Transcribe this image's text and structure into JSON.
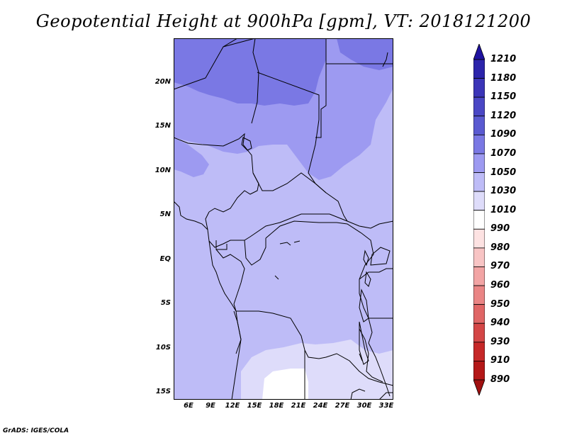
{
  "title": "Geopotential Height at 900hPa [gpm], VT: 2018121200",
  "footer": "GrADS: IGES/COLA",
  "map": {
    "lat_labels": [
      "20N",
      "15N",
      "10N",
      "5N",
      "EQ",
      "5S",
      "10S",
      "15S"
    ],
    "lon_labels": [
      "6E",
      "9E",
      "12E",
      "15E",
      "18E",
      "21E",
      "24E",
      "27E",
      "30E",
      "33E"
    ],
    "lat_range": [
      -15.8,
      24.7
    ],
    "lon_range": [
      3.5,
      33.5
    ]
  },
  "colorbar": {
    "labels": [
      "1210",
      "1180",
      "1150",
      "1120",
      "1090",
      "1070",
      "1050",
      "1030",
      "1010",
      "990",
      "980",
      "970",
      "960",
      "950",
      "940",
      "930",
      "910",
      "890"
    ],
    "colors": [
      "#1f12a0",
      "#2c24ab",
      "#3b35b8",
      "#4a47c5",
      "#5a5ad1",
      "#7a78e4",
      "#9d9af1",
      "#bebcf7",
      "#dedcfa",
      "#ffffff",
      "#fde2e2",
      "#f8c4c4",
      "#f2a4a4",
      "#ea8585",
      "#e06666",
      "#d44646",
      "#c62828",
      "#b41818",
      "#a01010"
    ]
  },
  "fill_colors": {
    "c1050": "#9d9af1",
    "c1030": "#bebcf7",
    "c1070": "#7a78e4",
    "c1010": "#dedcfa",
    "c990": "#ffffff"
  }
}
